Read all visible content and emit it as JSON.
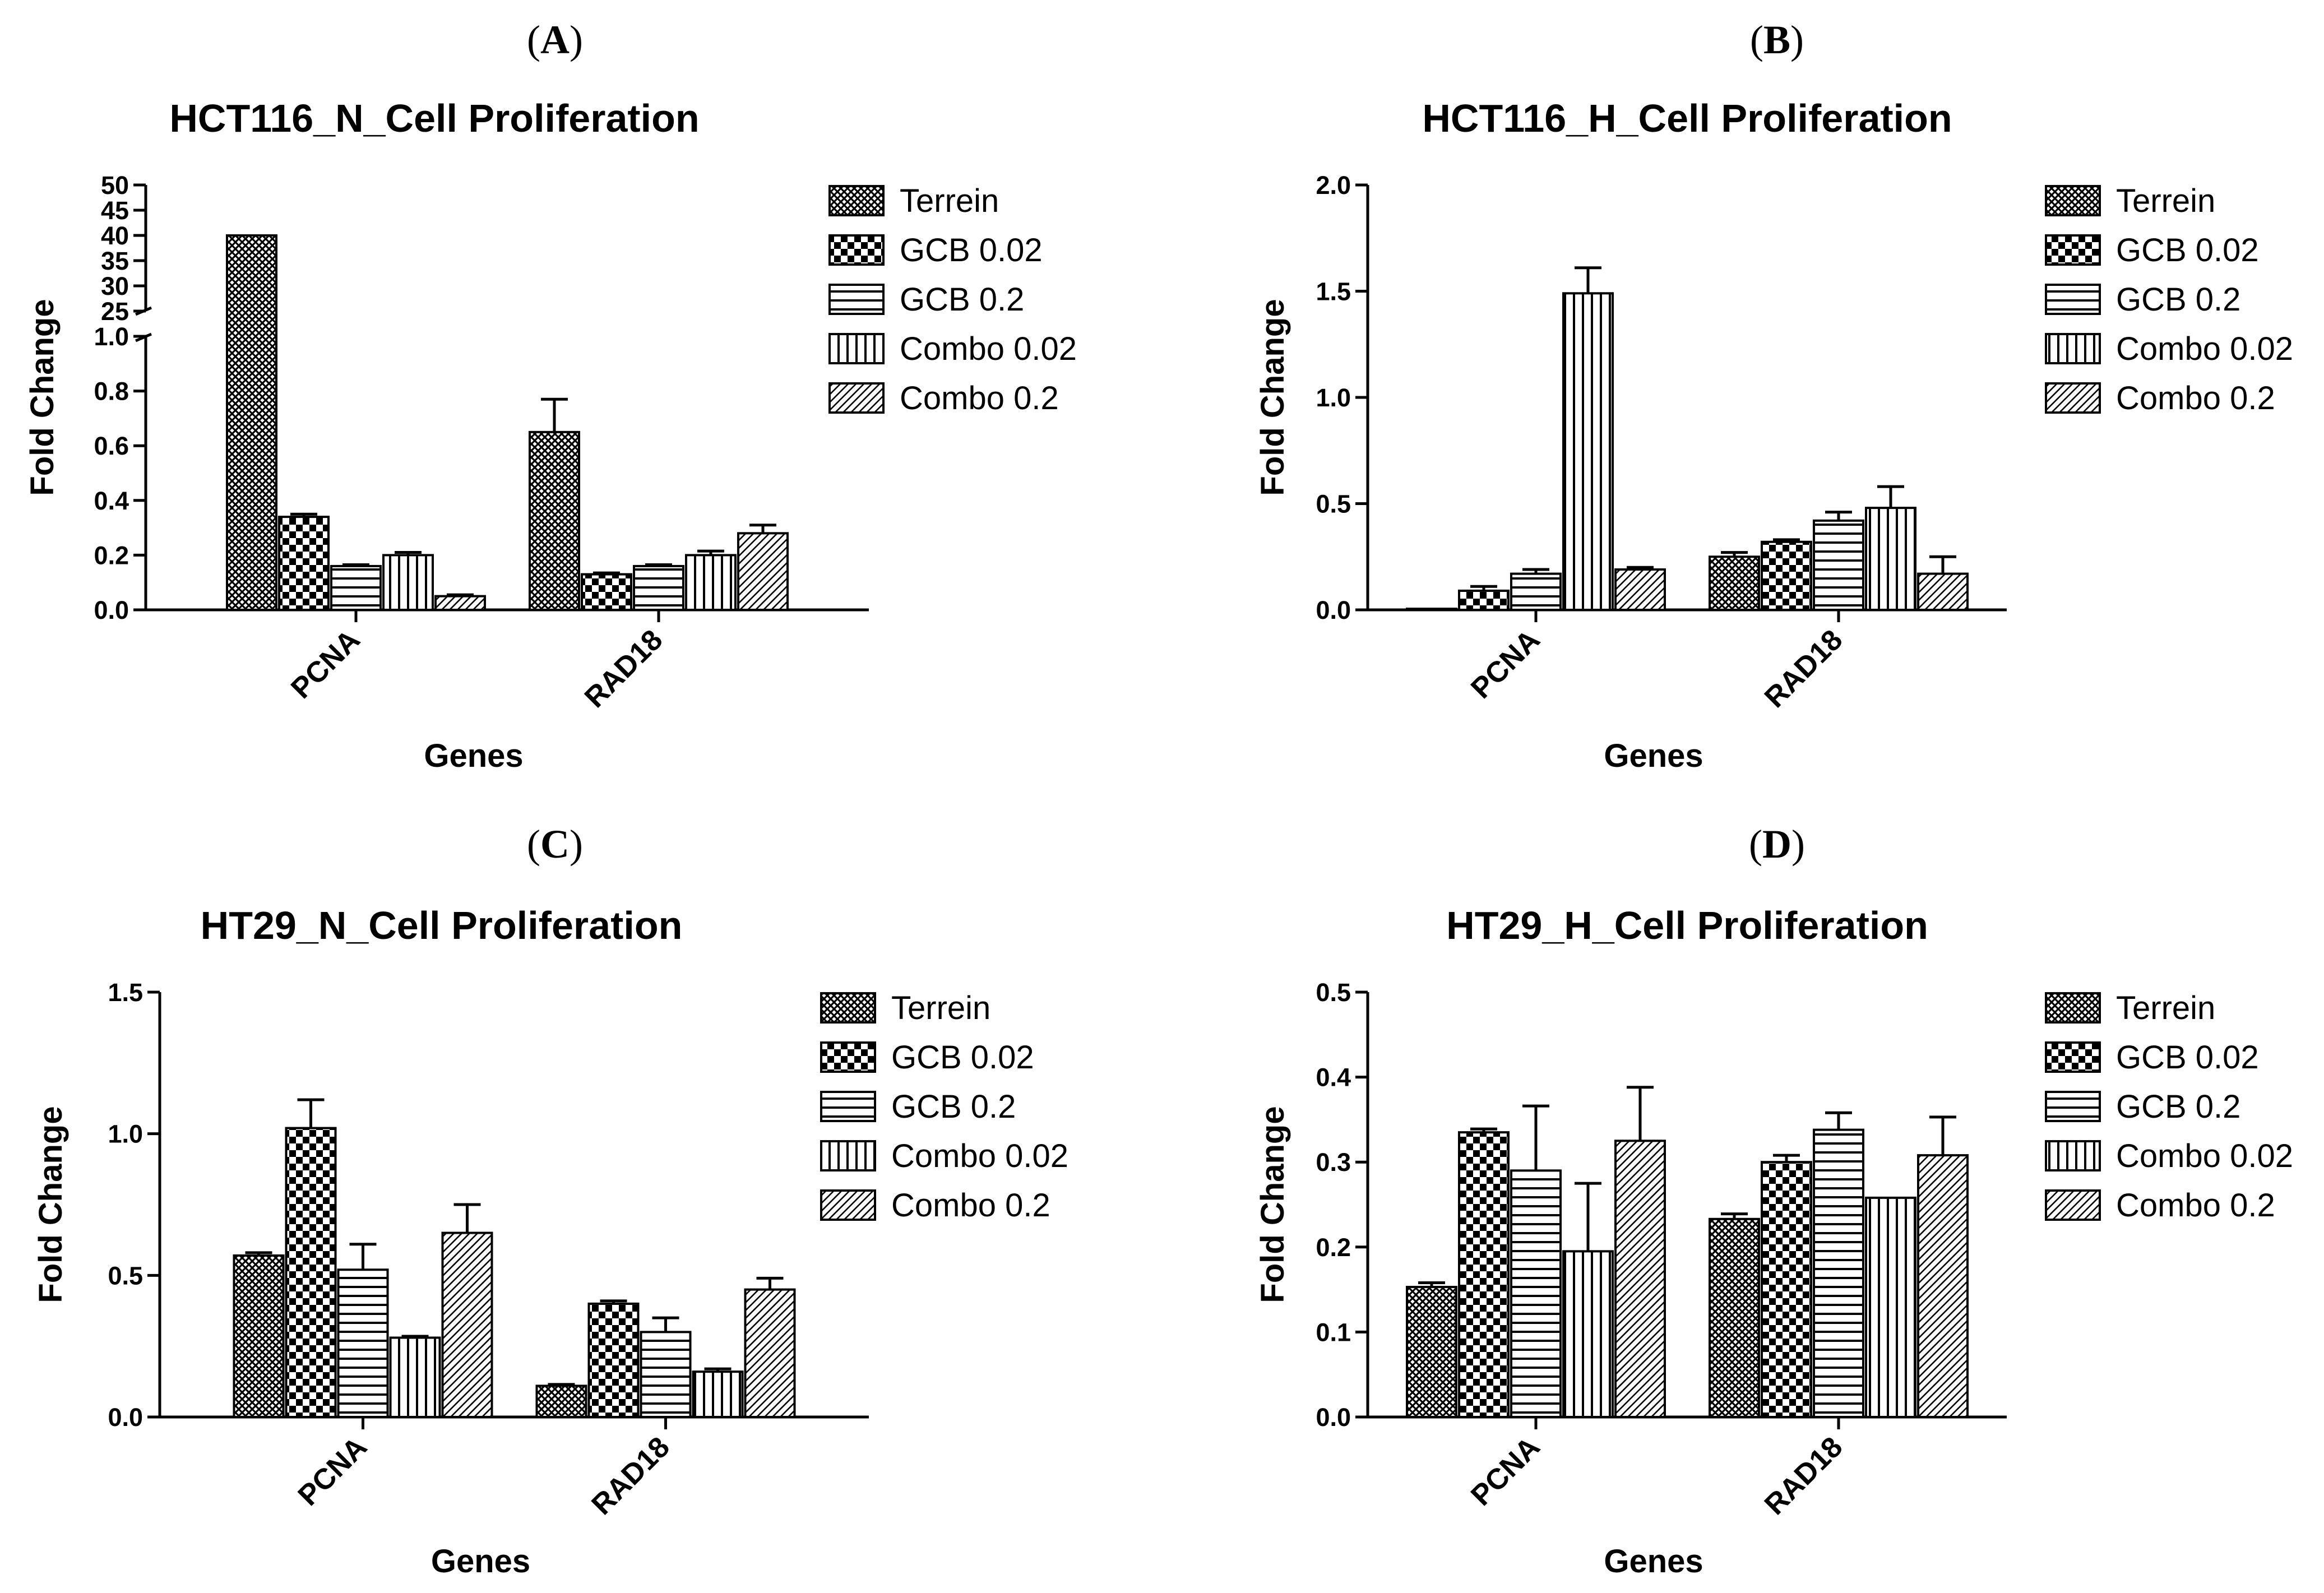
{
  "figure": {
    "panel_labels": [
      "A",
      "B",
      "C",
      "D"
    ]
  },
  "colors": {
    "ink": "#000000",
    "background": "#ffffff"
  },
  "series_patterns": [
    "crosshatch-fine",
    "checkerboard",
    "horizontal-lines",
    "vertical-lines",
    "diagonal-lines"
  ],
  "chart_data": [
    {
      "panel": "A",
      "type": "bar",
      "title": "HCT116_N_Cell Proliferation",
      "xlabel": "Genes",
      "ylabel": "Fold Change",
      "categories": [
        "PCNA",
        "RAD18"
      ],
      "axis_break": true,
      "ylim_lower": [
        0,
        1.0
      ],
      "yticks_lower": [
        "0.0",
        "0.2",
        "0.4",
        "0.6",
        "0.8",
        "1.0"
      ],
      "ylim_upper": [
        25,
        50
      ],
      "yticks_upper": [
        "25",
        "30",
        "35",
        "40",
        "45",
        "50"
      ],
      "legend": "right",
      "series": [
        {
          "name": "Terrein",
          "values": [
            40,
            0.65
          ],
          "errors": [
            0,
            0.12
          ]
        },
        {
          "name": "GCB 0.02",
          "values": [
            0.34,
            0.13
          ],
          "errors": [
            0.01,
            0.005
          ]
        },
        {
          "name": "GCB 0.2",
          "values": [
            0.16,
            0.16
          ],
          "errors": [
            0.005,
            0.005
          ]
        },
        {
          "name": "Combo 0.02",
          "values": [
            0.2,
            0.2
          ],
          "errors": [
            0.01,
            0.015
          ]
        },
        {
          "name": "Combo 0.2",
          "values": [
            0.05,
            0.28
          ],
          "errors": [
            0.005,
            0.03
          ]
        }
      ]
    },
    {
      "panel": "B",
      "type": "bar",
      "title": "HCT116_H_Cell Proliferation",
      "xlabel": "Genes",
      "ylabel": "Fold Change",
      "categories": [
        "PCNA",
        "RAD18"
      ],
      "ylim": [
        0,
        2.0
      ],
      "yticks": [
        "0.0",
        "0.5",
        "1.0",
        "1.5",
        "2.0"
      ],
      "legend": "right",
      "series": [
        {
          "name": "Terrein",
          "values": [
            0.005,
            0.25
          ],
          "errors": [
            0,
            0.02
          ]
        },
        {
          "name": "GCB 0.02",
          "values": [
            0.09,
            0.32
          ],
          "errors": [
            0.02,
            0.01
          ]
        },
        {
          "name": "GCB 0.2",
          "values": [
            0.17,
            0.42
          ],
          "errors": [
            0.02,
            0.04
          ]
        },
        {
          "name": "Combo 0.02",
          "values": [
            1.49,
            0.48
          ],
          "errors": [
            0.12,
            0.1
          ]
        },
        {
          "name": "Combo 0.2",
          "values": [
            0.19,
            0.17
          ],
          "errors": [
            0.01,
            0.08
          ]
        }
      ]
    },
    {
      "panel": "C",
      "type": "bar",
      "title": "HT29_N_Cell Proliferation",
      "xlabel": "Genes",
      "ylabel": "Fold Change",
      "categories": [
        "PCNA",
        "RAD18"
      ],
      "ylim": [
        0,
        1.5
      ],
      "yticks": [
        "0.0",
        "0.5",
        "1.0",
        "1.5"
      ],
      "legend": "right",
      "series": [
        {
          "name": "Terrein",
          "values": [
            0.57,
            0.11
          ],
          "errors": [
            0.01,
            0.005
          ]
        },
        {
          "name": "GCB 0.02",
          "values": [
            1.02,
            0.4
          ],
          "errors": [
            0.1,
            0.01
          ]
        },
        {
          "name": "GCB 0.2",
          "values": [
            0.52,
            0.3
          ],
          "errors": [
            0.09,
            0.05
          ]
        },
        {
          "name": "Combo 0.02",
          "values": [
            0.28,
            0.16
          ],
          "errors": [
            0.005,
            0.01
          ]
        },
        {
          "name": "Combo 0.2",
          "values": [
            0.65,
            0.45
          ],
          "errors": [
            0.1,
            0.04
          ]
        }
      ]
    },
    {
      "panel": "D",
      "type": "bar",
      "title": "HT29_H_Cell Proliferation",
      "xlabel": "Genes",
      "ylabel": "Fold Change",
      "categories": [
        "PCNA",
        "RAD18"
      ],
      "ylim": [
        0,
        0.5
      ],
      "yticks": [
        "0.0",
        "0.1",
        "0.2",
        "0.3",
        "0.4",
        "0.5"
      ],
      "legend": "right",
      "series": [
        {
          "name": "Terrein",
          "values": [
            0.153,
            0.233
          ],
          "errors": [
            0.005,
            0.006
          ]
        },
        {
          "name": "GCB 0.02",
          "values": [
            0.335,
            0.3
          ],
          "errors": [
            0.004,
            0.008
          ]
        },
        {
          "name": "GCB 0.2",
          "values": [
            0.29,
            0.338
          ],
          "errors": [
            0.076,
            0.02
          ]
        },
        {
          "name": "Combo 0.02",
          "values": [
            0.195,
            0.258
          ],
          "errors": [
            0.08,
            0
          ]
        },
        {
          "name": "Combo 0.2",
          "values": [
            0.325,
            0.308
          ],
          "errors": [
            0.063,
            0.045
          ]
        }
      ]
    }
  ]
}
